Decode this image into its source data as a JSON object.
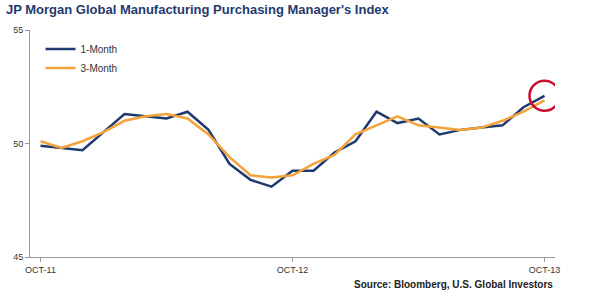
{
  "chart_data": {
    "type": "line",
    "title": "JP Morgan Global Manufacturing Purchasing Manager's Index",
    "annotations": [
      "Source: Bloomberg, U.S. Global Investors"
    ],
    "categories": [
      "OCT-11",
      null,
      null,
      null,
      null,
      null,
      null,
      null,
      null,
      null,
      null,
      null,
      "OCT-12",
      null,
      null,
      null,
      null,
      null,
      null,
      null,
      null,
      null,
      null,
      null,
      "OCT-13"
    ],
    "series": [
      {
        "name": "1-Month",
        "color": "#1f3a6e",
        "values": [
          49.9,
          49.8,
          49.7,
          50.5,
          51.3,
          51.2,
          51.1,
          51.4,
          50.6,
          49.1,
          48.4,
          48.1,
          48.8,
          48.8,
          49.6,
          50.1,
          51.4,
          50.9,
          51.1,
          50.4,
          50.6,
          50.7,
          50.8,
          51.6,
          52.1
        ]
      },
      {
        "name": "3-Month",
        "color": "#f4a23a",
        "values": [
          50.1,
          49.8,
          50.1,
          50.5,
          51.0,
          51.2,
          51.3,
          51.1,
          50.4,
          49.4,
          48.6,
          48.5,
          48.6,
          49.1,
          49.5,
          50.4,
          50.8,
          51.2,
          50.8,
          50.7,
          50.6,
          50.7,
          51.0,
          51.4,
          51.9
        ]
      }
    ],
    "ylim": [
      45,
      55
    ],
    "yticks": [
      45,
      50,
      55
    ],
    "grid": false,
    "legend": "top-left"
  }
}
